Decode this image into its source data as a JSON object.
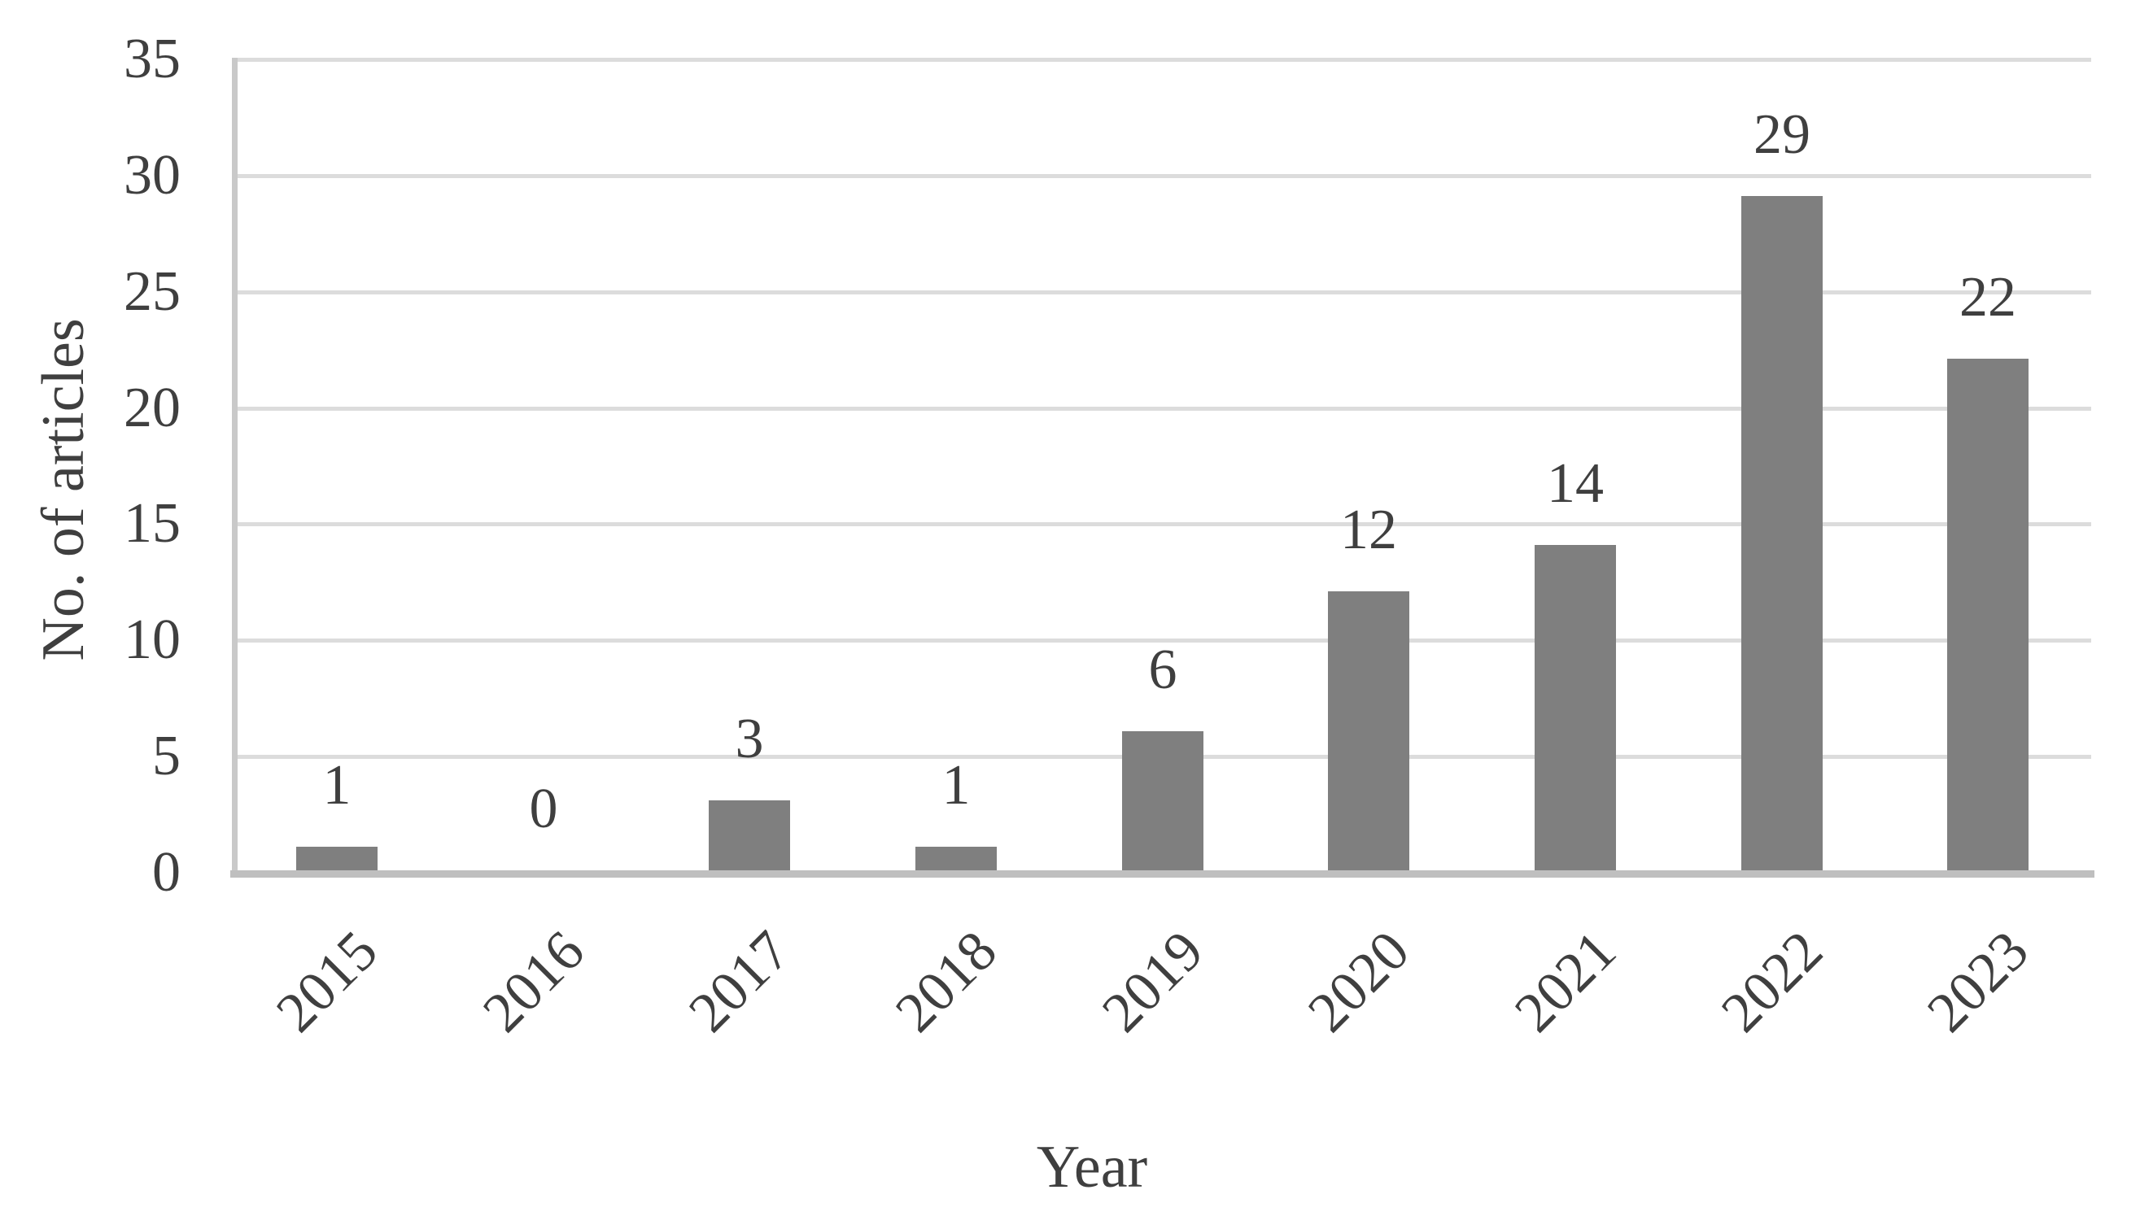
{
  "chart_data": {
    "type": "bar",
    "title": "",
    "categories": [
      "2015",
      "2016",
      "2017",
      "2018",
      "2019",
      "2020",
      "2021",
      "2022",
      "2023"
    ],
    "values": [
      1,
      0,
      3,
      1,
      6,
      12,
      14,
      29,
      22
    ],
    "data_labels": [
      "1",
      "0",
      "3",
      "1",
      "6",
      "12",
      "14",
      "29",
      "22"
    ],
    "xlabel": "Year",
    "ylabel": "No. of articles",
    "ylim": [
      0,
      35
    ],
    "yticks": [
      "0",
      "5",
      "10",
      "15",
      "20",
      "25",
      "30",
      "35"
    ],
    "ytick_step": 5,
    "grid": "horizontal",
    "legend_position": "none",
    "x_label_rotation_deg": 45,
    "colors": {
      "bar": "#7f7f7f",
      "gridline": "#dcdcdc",
      "y_axis_line": "#c9c9c9",
      "x_axis_line": "#bfbfbf",
      "text": "#3f3f3f",
      "background": "#ffffff"
    }
  }
}
